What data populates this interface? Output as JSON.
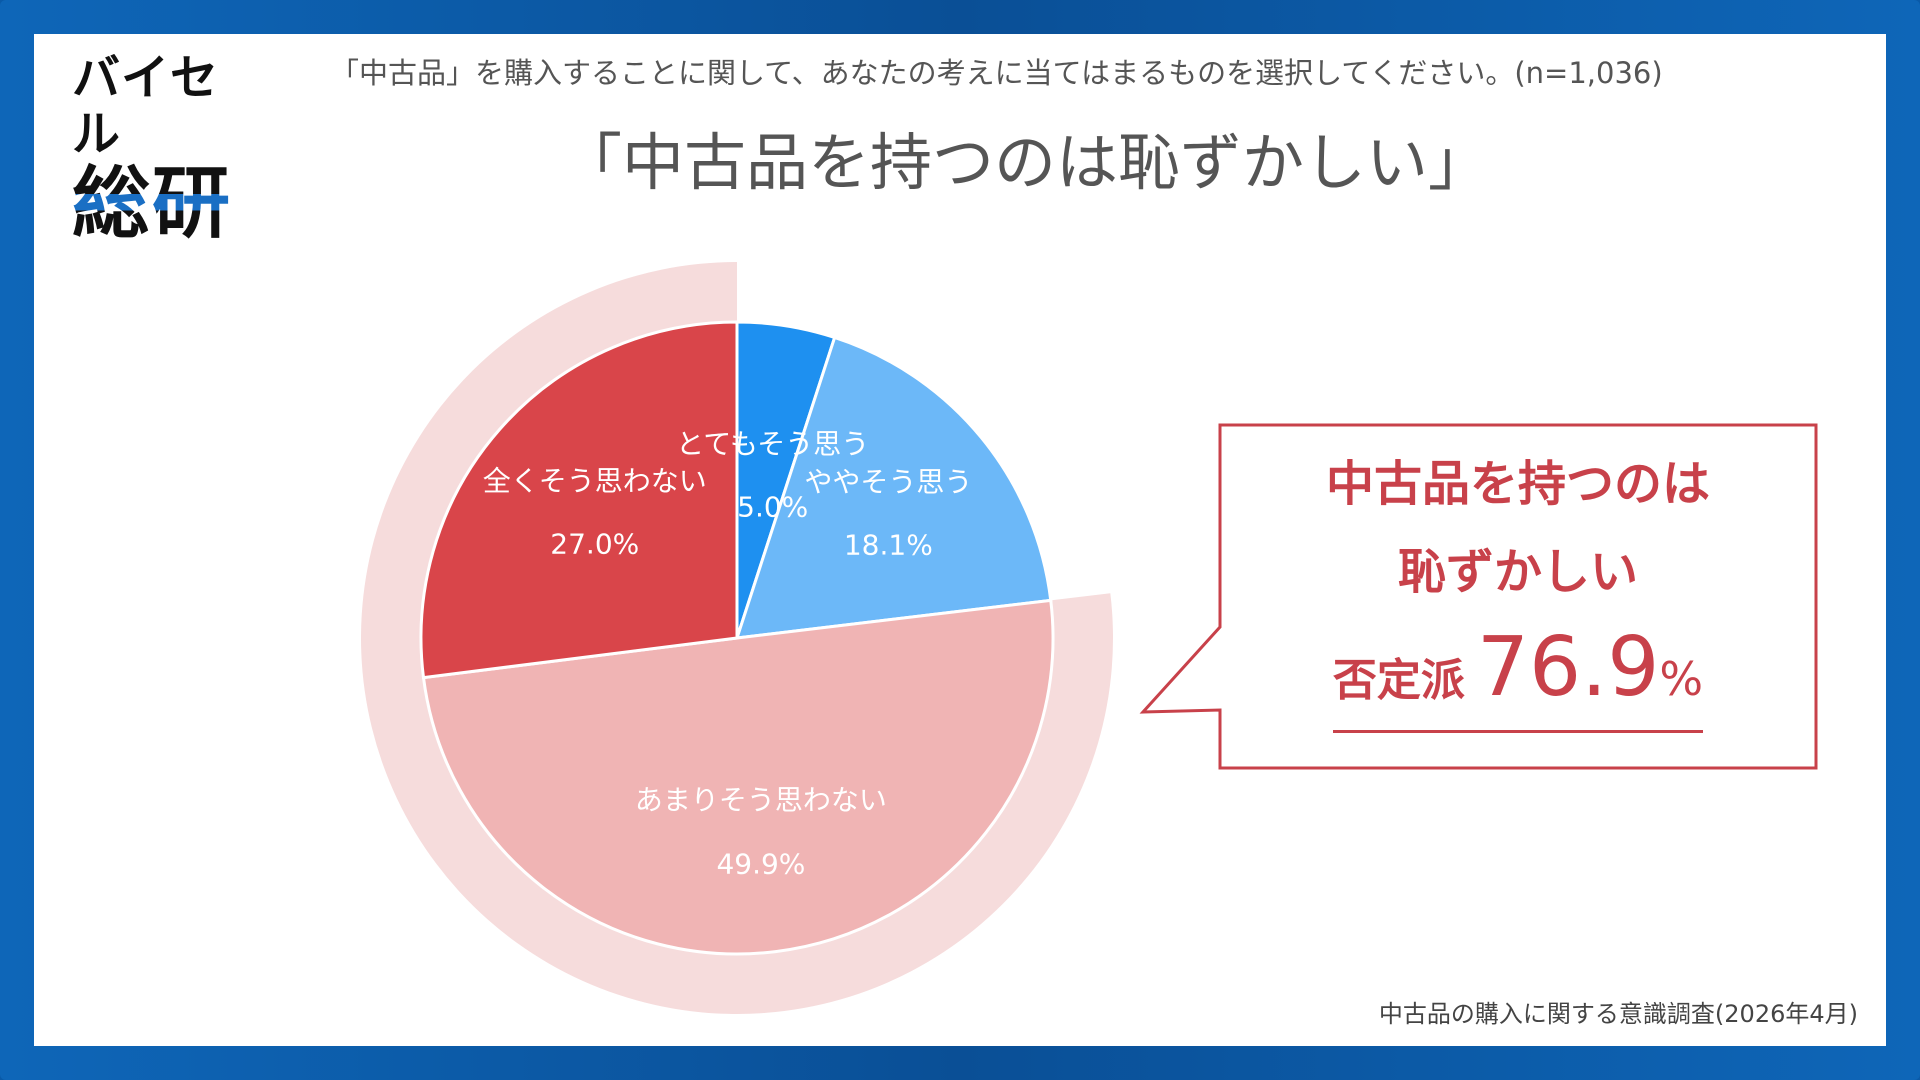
{
  "logo": {
    "line1": "バイセル",
    "line2": "総研"
  },
  "question": "「中古品」を購入することに関して、あなたの考えに当てはまるものを選択してください。(n=1,036)",
  "title": "「中古品を持つのは恥ずかしい」",
  "chart_data": {
    "type": "pie",
    "title": "「中古品を持つのは恥ずかしい」",
    "categories": [
      "とてもそう思う",
      "ややそう思う",
      "あまりそう思わない",
      "全くそう思わない"
    ],
    "values": [
      5.0,
      18.1,
      49.9,
      27.0
    ],
    "value_labels": [
      "5.0%",
      "18.1%",
      "49.9%",
      "27.0%"
    ],
    "colors": [
      "#1e90f0",
      "#6cb8f8",
      "#f0b4b4",
      "#d9454a"
    ],
    "highlight_group": {
      "label": "否定派",
      "value": 76.9,
      "members": [
        "あまりそう思わない",
        "全くそう思わない"
      ],
      "color": "#f6dcdc"
    }
  },
  "callout": {
    "line1": "中古品を持つのは",
    "line2": "恥ずかしい",
    "group_label": "否定派",
    "value": "76.9",
    "unit": "%",
    "color": "#c8414a"
  },
  "source": "中古品の購入に関する意識調査(2026年4月)"
}
